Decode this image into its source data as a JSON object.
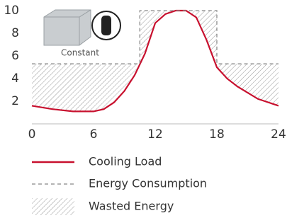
{
  "chart_data": {
    "type": "line",
    "inset_label": "Constant",
    "xlim": [
      0,
      24
    ],
    "xticks": [
      0,
      6,
      12,
      18,
      24
    ],
    "ylim": [
      0,
      10
    ],
    "yticks": [
      2,
      4,
      6,
      8,
      10
    ],
    "series": [
      {
        "name": "Cooling Load",
        "color": "#c8102e",
        "style": "solid",
        "x": [
          0,
          2,
          4,
          6,
          7,
          8,
          9,
          10,
          11,
          12,
          13,
          14,
          15,
          16,
          17,
          18,
          19,
          20,
          22,
          24
        ],
        "values": [
          1.6,
          1.3,
          1.1,
          1.1,
          1.3,
          1.9,
          2.9,
          4.3,
          6.2,
          8.9,
          9.7,
          10,
          10,
          9.4,
          7.4,
          5.0,
          4.0,
          3.3,
          2.2,
          1.6
        ]
      },
      {
        "name": "Energy Consumption",
        "color": "#888888",
        "style": "dashed",
        "x": [
          0,
          10.5,
          10.5,
          18,
          18,
          24
        ],
        "values": [
          5.3,
          5.3,
          10,
          10,
          5.3,
          5.3
        ]
      }
    ],
    "fill": {
      "name": "Wasted Energy",
      "color": "#999999",
      "pattern": "hatch"
    }
  }
}
